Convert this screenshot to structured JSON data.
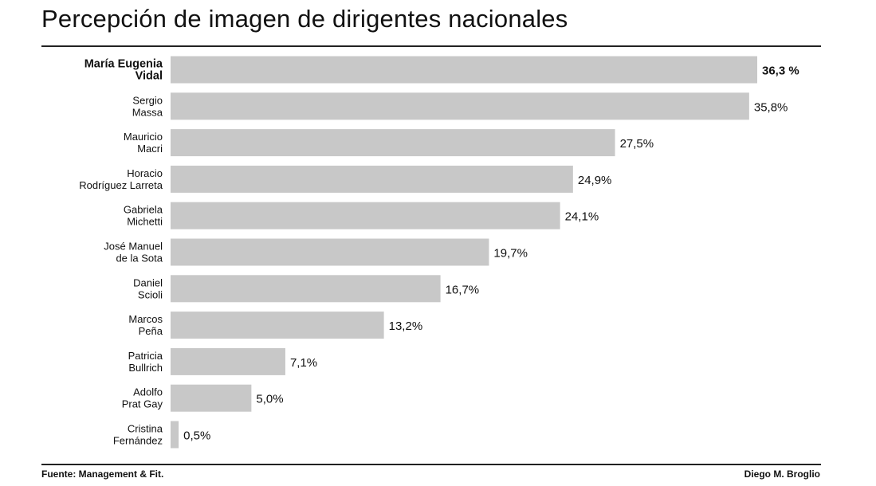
{
  "title": "Percepción de imagen de dirigentes nacionales",
  "source": "Fuente: Management & Fit.",
  "author": "Diego M. Broglio",
  "colors": {
    "bar": "#c8c8c8",
    "text": "#111111"
  },
  "chart_data": {
    "type": "bar",
    "orientation": "horizontal",
    "categories": [
      [
        "María Eugenia",
        "Vidal"
      ],
      [
        "Sergio",
        "Massa"
      ],
      [
        "Mauricio",
        "Macri"
      ],
      [
        "Horacio",
        "Rodríguez Larreta"
      ],
      [
        "Gabriela",
        "Michetti"
      ],
      [
        "José Manuel",
        "de la Sota"
      ],
      [
        "Daniel",
        "Scioli"
      ],
      [
        "Marcos",
        "Peña"
      ],
      [
        "Patricia",
        "Bullrich"
      ],
      [
        "Adolfo",
        "Prat Gay"
      ],
      [
        "Cristina",
        "Fernández"
      ]
    ],
    "values": [
      36.3,
      35.8,
      27.5,
      24.9,
      24.1,
      19.7,
      16.7,
      13.2,
      7.1,
      5.0,
      0.5
    ],
    "value_labels": [
      "36,3 %",
      "35,8%",
      "27,5%",
      "24,9%",
      "24,1%",
      "19,7%",
      "16,7%",
      "13,2%",
      "7,1%",
      "5,0%",
      "0,5%"
    ],
    "highlight_index": 0,
    "xlim": [
      0,
      36.3
    ],
    "grid": false,
    "legend": "none"
  }
}
